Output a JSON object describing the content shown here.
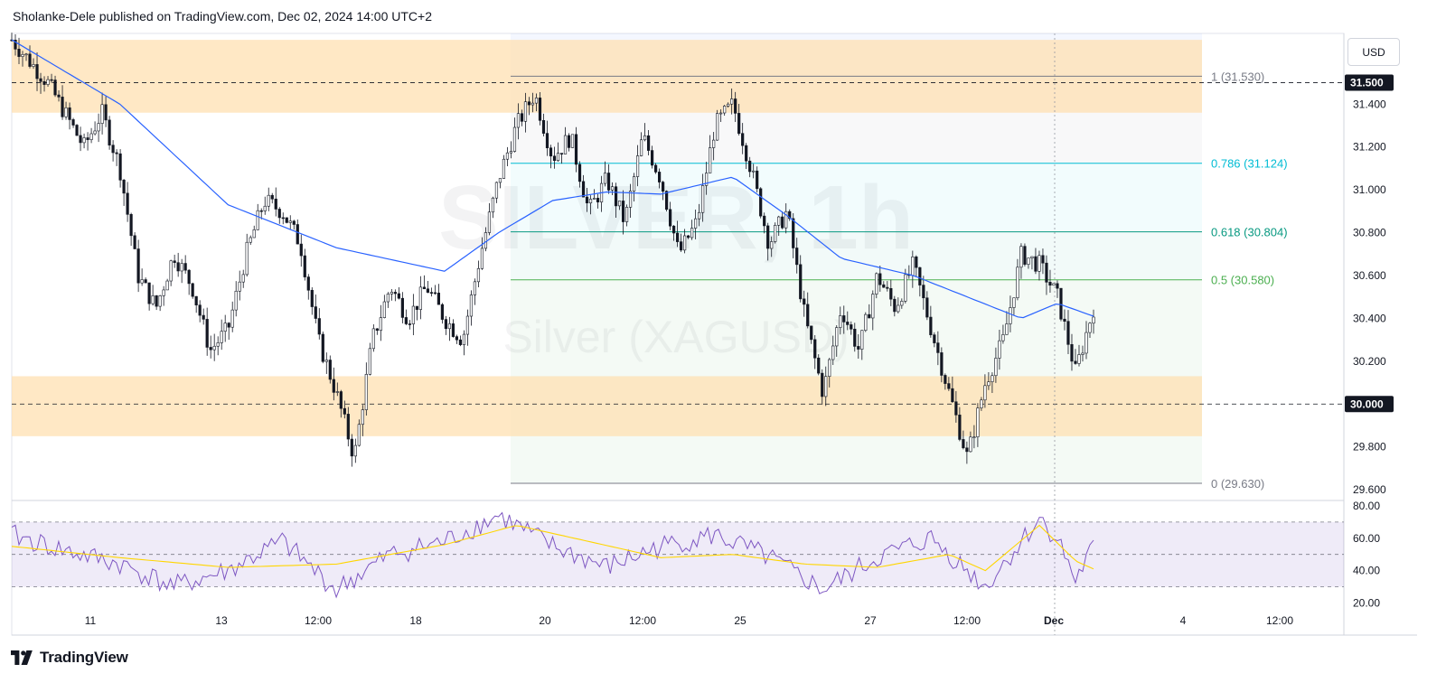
{
  "header": {
    "published": "Sholanke-Dele published on TradingView.com, Dec 02, 2024 14:00 UTC+2"
  },
  "currency_button": "USD",
  "watermark": {
    "symbol": "SILVER, 1h",
    "name": "Silver (XAGUSD)"
  },
  "footer": {
    "brand": "TradingView"
  },
  "colors": {
    "candle": "#131722",
    "ma": "#2962ff",
    "zone": "#ffe0b2",
    "fib_1": "#787b86",
    "fib_0786": "#00bcd4",
    "fib_0618": "#089981",
    "fib_05": "#4caf50",
    "fib_0": "#787b86",
    "rsi": "#7e57c2",
    "rsi_ma": "#ffd600",
    "rsi_band": "#7e57c2"
  },
  "chart_data": {
    "type": "candlestick",
    "symbol": "SILVER, 1h",
    "y_axis": {
      "ticks": [
        "31.400",
        "31.200",
        "31.000",
        "30.800",
        "30.600",
        "30.400",
        "30.200",
        "29.800",
        "29.600"
      ],
      "ylim": [
        29.55,
        31.73
      ]
    },
    "x_axis": {
      "ticks": [
        "11",
        "13",
        "12:00",
        "18",
        "20",
        "12:00",
        "25",
        "27",
        "12:00",
        "Dec",
        "4",
        "12:00"
      ]
    },
    "price_labels": [
      "31.500",
      "30.000"
    ],
    "supply_zone": [
      31.36,
      31.7
    ],
    "demand_zone": [
      29.85,
      30.13
    ],
    "fibonacci": [
      {
        "level": "1",
        "price": "31.530",
        "label": "1 (31.530)"
      },
      {
        "level": "0.786",
        "price": "31.124",
        "label": "0.786 (31.124)"
      },
      {
        "level": "0.618",
        "price": "30.804",
        "label": "0.618 (30.804)"
      },
      {
        "level": "0.5",
        "price": "30.580",
        "label": "0.5 (30.580)"
      },
      {
        "level": "0",
        "price": "29.630",
        "label": "0 (29.630)"
      }
    ],
    "price_path": [
      [
        0,
        31.7
      ],
      [
        2,
        31.5
      ],
      [
        4,
        31.2
      ],
      [
        5,
        31.36
      ],
      [
        6,
        31.1
      ],
      [
        7,
        30.6
      ],
      [
        8,
        30.45
      ],
      [
        9,
        30.7
      ],
      [
        10,
        30.55
      ],
      [
        11,
        30.25
      ],
      [
        12,
        30.35
      ],
      [
        13,
        30.7
      ],
      [
        14,
        30.95
      ],
      [
        15,
        30.9
      ],
      [
        16,
        30.75
      ],
      [
        17,
        30.3
      ],
      [
        18,
        30.05
      ],
      [
        19,
        29.75
      ],
      [
        20,
        30.3
      ],
      [
        21,
        30.55
      ],
      [
        22,
        30.4
      ],
      [
        23,
        30.55
      ],
      [
        24,
        30.4
      ],
      [
        25,
        30.3
      ],
      [
        26,
        30.7
      ],
      [
        27,
        31.05
      ],
      [
        28,
        31.3
      ],
      [
        29,
        31.45
      ],
      [
        30,
        31.15
      ],
      [
        31,
        31.25
      ],
      [
        32,
        30.9
      ],
      [
        33,
        31.05
      ],
      [
        34,
        30.85
      ],
      [
        35,
        31.25
      ],
      [
        36,
        31.05
      ],
      [
        37,
        30.7
      ],
      [
        38,
        30.85
      ],
      [
        39,
        31.3
      ],
      [
        40,
        31.4
      ],
      [
        41,
        31.1
      ],
      [
        42,
        30.75
      ],
      [
        43,
        30.9
      ],
      [
        44,
        30.4
      ],
      [
        45,
        30.05
      ],
      [
        46,
        30.45
      ],
      [
        47,
        30.25
      ],
      [
        48,
        30.6
      ],
      [
        49,
        30.45
      ],
      [
        50,
        30.65
      ],
      [
        51,
        30.35
      ],
      [
        52,
        30.05
      ],
      [
        53,
        29.75
      ],
      [
        54,
        30.1
      ],
      [
        55,
        30.3
      ],
      [
        56,
        30.7
      ],
      [
        57,
        30.65
      ],
      [
        58,
        30.5
      ],
      [
        59,
        30.15
      ],
      [
        60,
        30.45
      ]
    ],
    "moving_average": [
      [
        0,
        31.7
      ],
      [
        6,
        31.4
      ],
      [
        12,
        30.93
      ],
      [
        18,
        30.73
      ],
      [
        24,
        30.62
      ],
      [
        27,
        30.8
      ],
      [
        30,
        30.95
      ],
      [
        33,
        30.99
      ],
      [
        36,
        30.98
      ],
      [
        40,
        31.06
      ],
      [
        43,
        30.88
      ],
      [
        46,
        30.68
      ],
      [
        50,
        30.6
      ],
      [
        53,
        30.5
      ],
      [
        56,
        30.4
      ],
      [
        58,
        30.47
      ],
      [
        60,
        30.41
      ]
    ],
    "rsi": {
      "ticks": [
        "80.00",
        "60.00",
        "40.00",
        "20.00"
      ],
      "upper": 70,
      "middle": 50,
      "lower": 30,
      "values": [
        [
          0,
          62
        ],
        [
          3,
          52
        ],
        [
          6,
          44
        ],
        [
          9,
          30
        ],
        [
          12,
          40
        ],
        [
          15,
          58
        ],
        [
          18,
          28
        ],
        [
          21,
          50
        ],
        [
          24,
          58
        ],
        [
          27,
          74
        ],
        [
          30,
          55
        ],
        [
          33,
          42
        ],
        [
          36,
          55
        ],
        [
          39,
          62
        ],
        [
          42,
          48
        ],
        [
          45,
          28
        ],
        [
          48,
          48
        ],
        [
          51,
          60
        ],
        [
          54,
          30
        ],
        [
          57,
          72
        ],
        [
          58,
          60
        ],
        [
          59,
          34
        ],
        [
          60,
          55
        ]
      ],
      "ma_values": [
        [
          0,
          55
        ],
        [
          6,
          48
        ],
        [
          12,
          42
        ],
        [
          18,
          44
        ],
        [
          24,
          56
        ],
        [
          28,
          68
        ],
        [
          32,
          58
        ],
        [
          36,
          48
        ],
        [
          40,
          50
        ],
        [
          44,
          44
        ],
        [
          48,
          42
        ],
        [
          52,
          50
        ],
        [
          54,
          40
        ],
        [
          57,
          68
        ],
        [
          59,
          46
        ],
        [
          60,
          41
        ]
      ]
    }
  }
}
